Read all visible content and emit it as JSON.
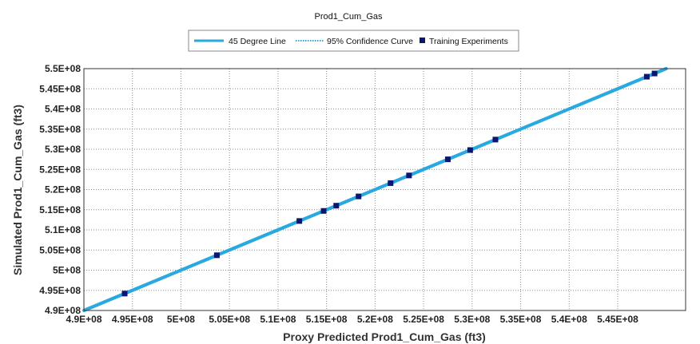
{
  "chart_data": {
    "type": "scatter",
    "title": "Prod1_Cum_Gas",
    "xlabel": "Proxy Predicted Prod1_Cum_Gas (ft3)",
    "ylabel": "Simulated Prod1_Cum_Gas (ft3)",
    "xlim": [
      490000000,
      550000000
    ],
    "ylim": [
      490000000,
      550000000
    ],
    "x_ticks": [
      490000000,
      495000000,
      500000000,
      505000000,
      510000000,
      515000000,
      520000000,
      525000000,
      530000000,
      535000000,
      540000000,
      545000000
    ],
    "x_tick_labels": [
      "4.9E+08",
      "4.95E+08",
      "5E+08",
      "5.05E+08",
      "5.1E+08",
      "5.15E+08",
      "5.2E+08",
      "5.25E+08",
      "5.3E+08",
      "5.35E+08",
      "5.4E+08",
      "5.45E+08"
    ],
    "y_ticks": [
      490000000,
      495000000,
      500000000,
      505000000,
      510000000,
      515000000,
      520000000,
      525000000,
      530000000,
      535000000,
      540000000,
      545000000,
      550000000
    ],
    "y_tick_labels": [
      "4.9E+08",
      "4.95E+08",
      "5E+08",
      "5.05E+08",
      "5.1E+08",
      "5.15E+08",
      "5.2E+08",
      "5.25E+08",
      "5.3E+08",
      "5.35E+08",
      "5.4E+08",
      "5.45E+08",
      "5.5E+08"
    ],
    "grid": true,
    "legend_position": "top-center",
    "series": [
      {
        "name": "45 Degree Line",
        "kind": "line",
        "color": "#29A9E0",
        "x": [
          490000000,
          550000000
        ],
        "y": [
          490000000,
          550000000
        ]
      },
      {
        "name": "95% Confidence Curve",
        "kind": "dotted-line",
        "color": "#29A9E0",
        "x": [
          490000000,
          550000000
        ],
        "y": [
          490000000,
          550000000
        ]
      },
      {
        "name": "Training Experiments",
        "kind": "scatter",
        "color": "#0A1670",
        "x": [
          494200000,
          503700000,
          512200000,
          514700000,
          516000000,
          518300000,
          521600000,
          523500000,
          527500000,
          529800000,
          532400000,
          548000000,
          548800000
        ],
        "y": [
          494200000,
          503700000,
          512200000,
          514700000,
          516000000,
          518300000,
          521600000,
          523500000,
          527500000,
          529800000,
          532400000,
          548000000,
          548800000
        ]
      }
    ]
  }
}
